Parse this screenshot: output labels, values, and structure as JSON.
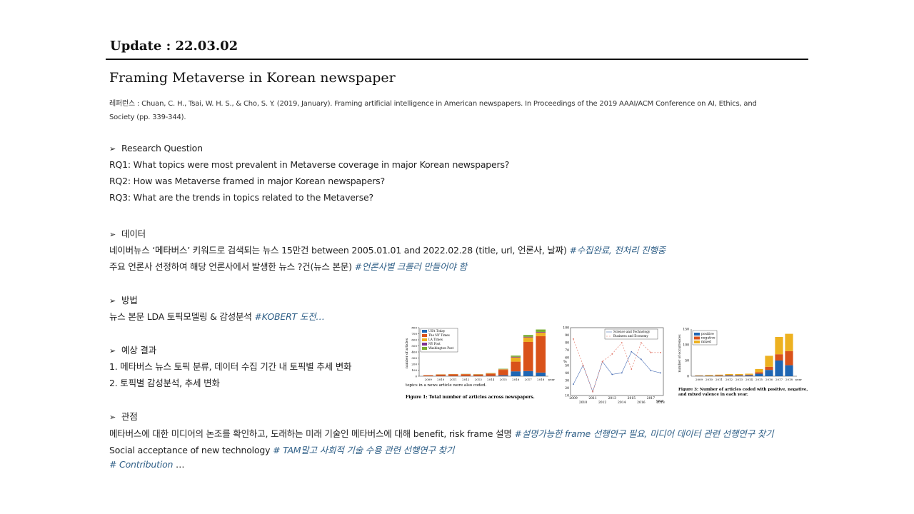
{
  "header": {
    "update": "Update : 22.03.02"
  },
  "title": "Framing Metaverse in Korean newspaper",
  "reference": "레퍼런스 : Chuan, C. H., Tsai, W. H. S., & Cho, S. Y. (2019, January). Framing artificial intelligence in American newspapers. In Proceedings of the 2019 AAAI/ACM Conference on AI, Ethics, and Society (pp. 339-344).",
  "research": {
    "heading": "Research Question",
    "rq1": "RQ1: What topics were most prevalent in Metaverse coverage in major Korean newspapers?",
    "rq2": "RQ2: How was Metaverse framed in major Korean newspapers?",
    "rq3": "RQ3: What are the trends in topics related to the Metaverse?"
  },
  "data": {
    "heading": "데이터",
    "line1": "네이버뉴스 ‘메타버스’ 키워드로 검색되는 뉴스 15만건 between  2005.01.01  and 2022.02.28  (title,  url,  언론사,  날짜)",
    "tag1": "#수집완료, 전처리 진행중",
    "line2": "주요 언론사 선정하여 해당 언론사에서 발생한 뉴스 ?건(뉴스 본문)",
    "tag2": "#언론사별 크롤러 만들어야 함"
  },
  "method": {
    "heading": "방법",
    "line": "뉴스 본문 LDA 토픽모델링 & 감성분석",
    "tag": "#KOBERT 도전…"
  },
  "expected": {
    "heading": "예상 결과",
    "item1": "1. 메타버스 뉴스 토픽 분류,  데이터 수집 기간 내 토픽별 추세 변화",
    "item2": "2. 토픽별 감성분석,  추세 변화"
  },
  "perspective": {
    "heading": "관점",
    "line1": "메타버스에 대한 미디어의 논조를 확인하고,  도래하는 미래 기술인 메타버스에  대해 benefit,  risk frame 설명",
    "tag1": "#설명가능한 frame 선행연구 필요,  미디어 데이터 관련 선행연구 찾기",
    "line2": "Social acceptance of new technology",
    "tag2": "# TAM말고 사회적 기술 수용 관련 선행연구 찾기",
    "tag3": "# Contribution",
    "ellipsis": "…"
  },
  "figures": {
    "fig1": {
      "caption": "Figure 1: Total number of articles across newspapers.",
      "above_caption": "topics in a news article were also coded.",
      "ylabel": "number of articles",
      "legend": [
        "USA Today",
        "The NY Times",
        "LA Times",
        "NY Post",
        "Washington Post"
      ]
    },
    "fig2": {
      "legend": [
        "Science and Technology",
        "Business and Economy"
      ],
      "ylabel": "%",
      "xlabel": "year"
    },
    "fig3": {
      "caption": "Figure 3: Number of articles coded with positive, negative, and mixed valence in each year.",
      "ylabel": "number of occurrences",
      "legend": [
        "positive",
        "negative",
        "mixed"
      ]
    }
  },
  "chart_data": [
    {
      "type": "bar",
      "title": "",
      "ylabel": "number of articles",
      "xlabel": "year",
      "categories": [
        "2009",
        "2010",
        "2011",
        "2012",
        "2013",
        "2014",
        "2015",
        "2016",
        "2017",
        "2018"
      ],
      "ylim": [
        0,
        800
      ],
      "series": [
        {
          "name": "USA Today",
          "values": [
            2,
            3,
            3,
            3,
            3,
            4,
            15,
            80,
            85,
            60
          ]
        },
        {
          "name": "The NY Times",
          "values": [
            15,
            25,
            30,
            30,
            25,
            40,
            90,
            160,
            480,
            600
          ]
        },
        {
          "name": "LA Times",
          "values": [
            1,
            2,
            2,
            3,
            4,
            5,
            10,
            70,
            75,
            60
          ]
        },
        {
          "name": "NY Post",
          "values": [
            0,
            0,
            0,
            1,
            1,
            1,
            3,
            10,
            10,
            10
          ]
        },
        {
          "name": "Washington Post",
          "values": [
            0,
            1,
            1,
            2,
            2,
            3,
            5,
            20,
            30,
            40
          ]
        }
      ]
    },
    {
      "type": "line",
      "ylabel": "%",
      "xlabel": "year",
      "x": [
        "2009",
        "2010",
        "2011",
        "2012",
        "2013",
        "2014",
        "2015",
        "2016",
        "2017",
        "2018"
      ],
      "ylim": [
        10,
        100
      ],
      "series": [
        {
          "name": "Science and Technology",
          "values": [
            25,
            50,
            15,
            55,
            38,
            40,
            68,
            58,
            43,
            40
          ]
        },
        {
          "name": "Business and Economy",
          "values": [
            85,
            50,
            15,
            55,
            65,
            80,
            45,
            80,
            67,
            67
          ]
        }
      ]
    },
    {
      "type": "bar",
      "ylabel": "number of occurrences",
      "xlabel": "year",
      "categories": [
        "2009",
        "2010",
        "2011",
        "2012",
        "2013",
        "2014",
        "2015",
        "2016",
        "2017",
        "2018"
      ],
      "ylim": [
        0,
        150
      ],
      "series": [
        {
          "name": "positive",
          "values": [
            1,
            1,
            1,
            2,
            2,
            3,
            8,
            20,
            50,
            35
          ]
        },
        {
          "name": "negative",
          "values": [
            1,
            1,
            2,
            2,
            2,
            2,
            5,
            10,
            20,
            45
          ]
        },
        {
          "name": "mixed",
          "values": [
            1,
            2,
            2,
            3,
            3,
            3,
            10,
            35,
            55,
            55
          ]
        }
      ]
    }
  ],
  "colors": {
    "tag": "#2f5f87",
    "fig1": [
      "#1f66b3",
      "#d9521a",
      "#edb120",
      "#7e2f8e",
      "#77ac30"
    ],
    "fig3": [
      "#1f66b3",
      "#d9521a",
      "#edb120"
    ]
  }
}
